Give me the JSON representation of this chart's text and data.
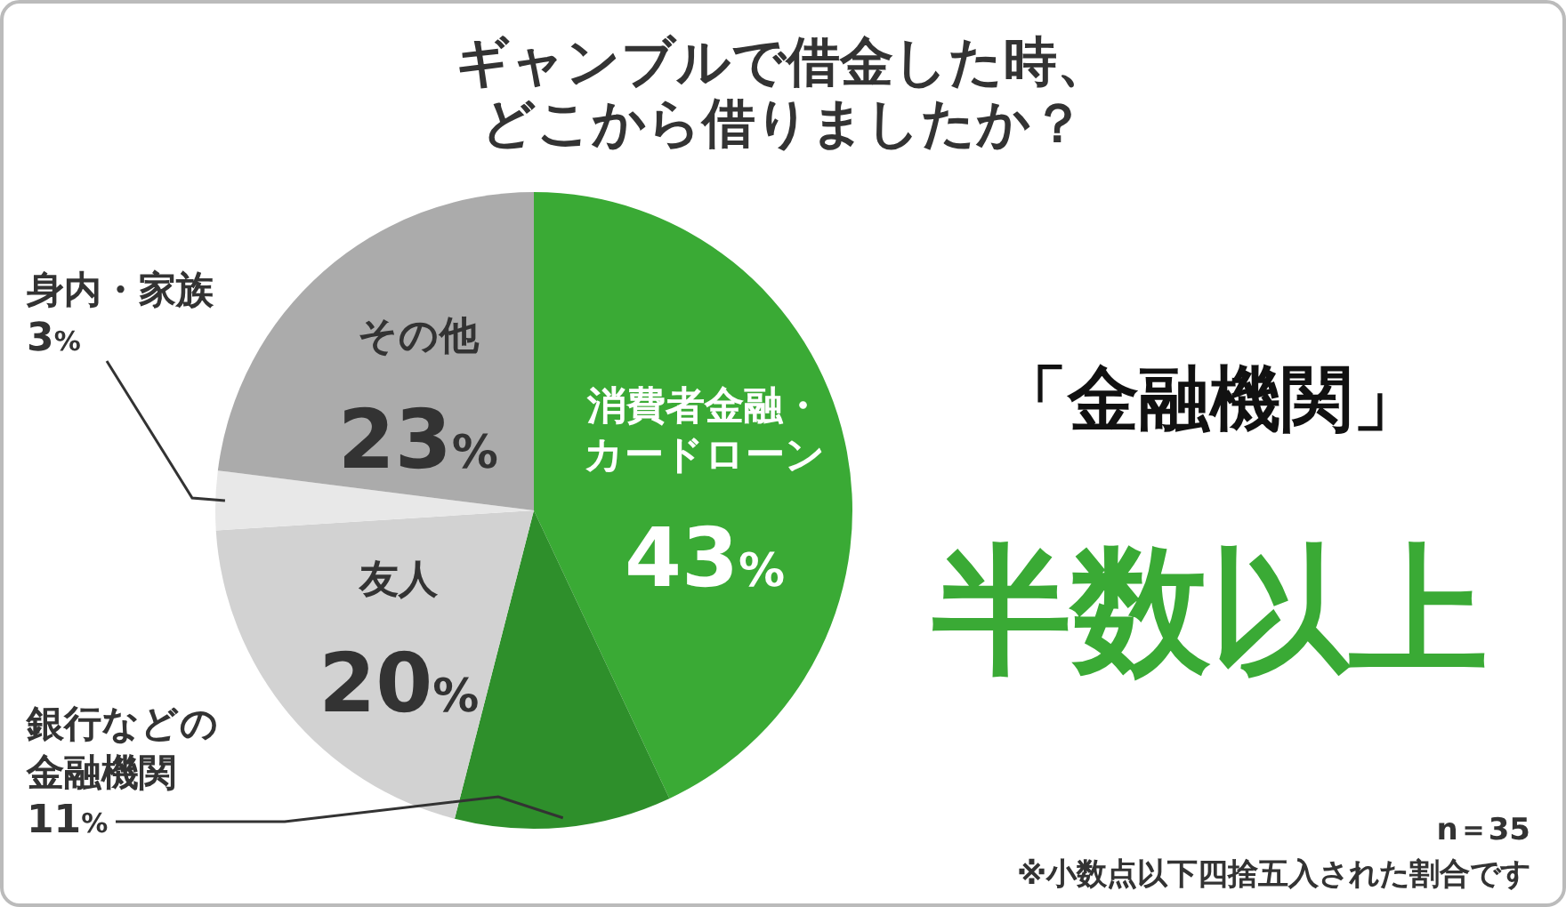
{
  "chart_data": {
    "type": "pie",
    "title": "ギャンブルで借金した時、どこから借りましたか？",
    "categories": [
      "消費者金融・カードローン",
      "銀行などの金融機関",
      "友人",
      "身内・家族",
      "その他"
    ],
    "values": [
      43,
      11,
      20,
      3,
      23
    ],
    "value_labels": [
      "43%",
      "11%",
      "20%",
      "3%",
      "23%"
    ],
    "colors": [
      "#3aaa35",
      "#2e8f2b",
      "#d2d2d2",
      "#e8e8e8",
      "#ababab"
    ],
    "annotations": [
      "「金融機関」",
      "半数以上",
      "n＝35",
      "※小数点以下四捨五入された割合です"
    ]
  }
}
